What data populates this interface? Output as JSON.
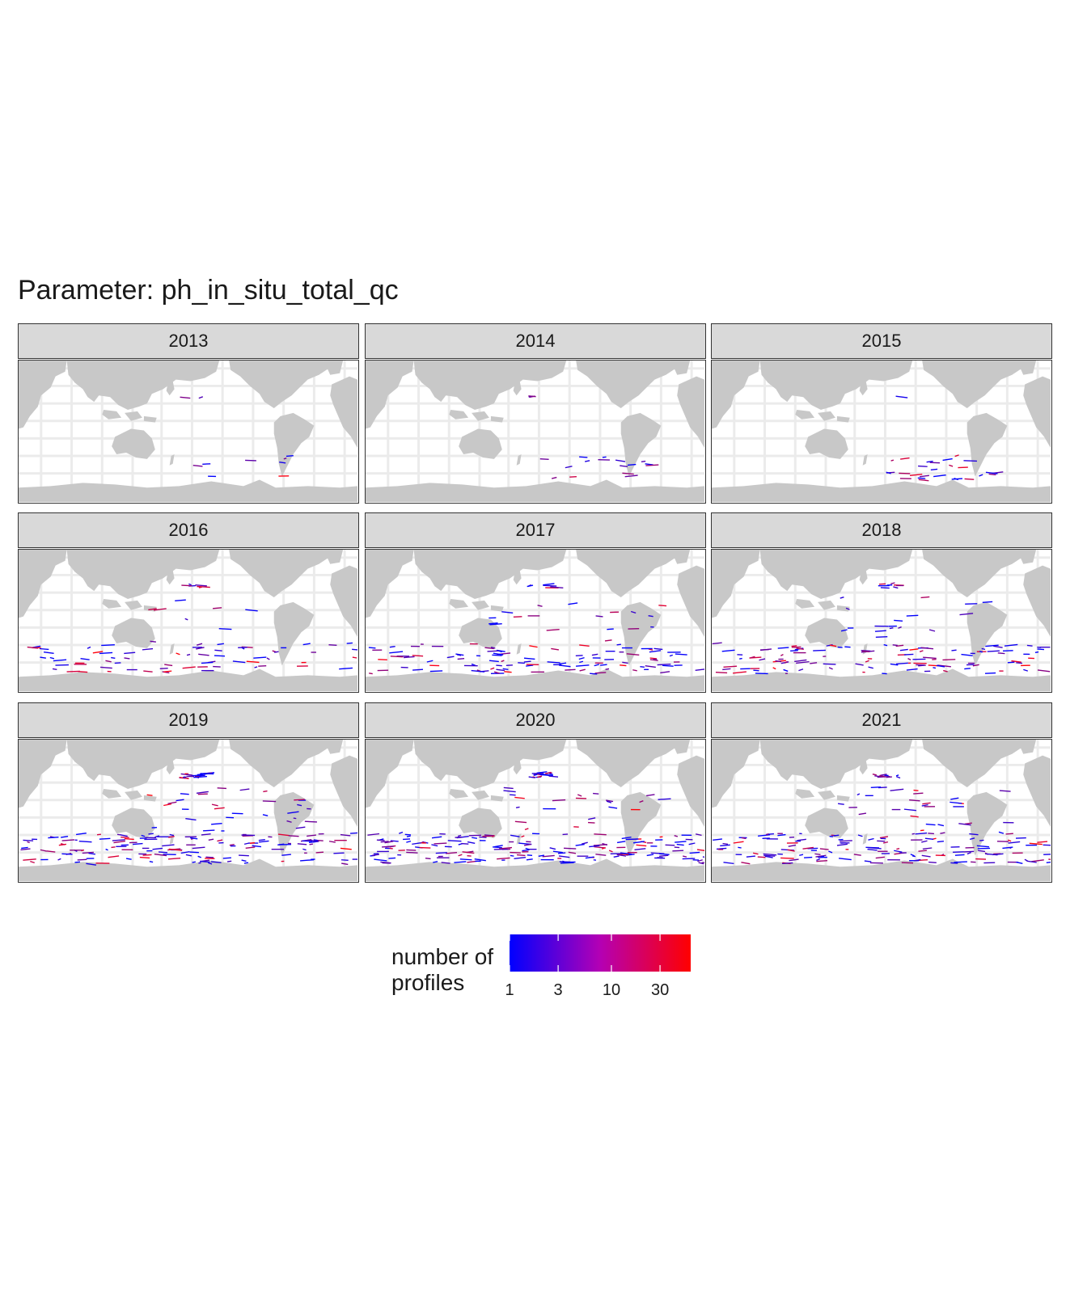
{
  "title": "Parameter: ph_in_situ_total_qc",
  "colors": {
    "land": "#c8c8c8",
    "grid": "#ebebeb",
    "strip": "#d9d9d9",
    "low": "#0000ff",
    "high": "#ff0000"
  },
  "panels": [
    {
      "year": "2013",
      "activity": 0.02
    },
    {
      "year": "2014",
      "activity": 0.06
    },
    {
      "year": "2015",
      "activity": 0.1
    },
    {
      "year": "2016",
      "activity": 0.35
    },
    {
      "year": "2017",
      "activity": 0.55
    },
    {
      "year": "2018",
      "activity": 0.6
    },
    {
      "year": "2019",
      "activity": 0.85
    },
    {
      "year": "2020",
      "activity": 0.9
    },
    {
      "year": "2021",
      "activity": 0.8
    }
  ],
  "legend": {
    "title": "number of\nprofiles",
    "ticks": [
      "1",
      "3",
      "10",
      "30"
    ],
    "tick_values": [
      1,
      3,
      10,
      30
    ],
    "scale": "log",
    "range": [
      1,
      60
    ],
    "colors": [
      "#0000ff",
      "#ff0000"
    ]
  }
}
